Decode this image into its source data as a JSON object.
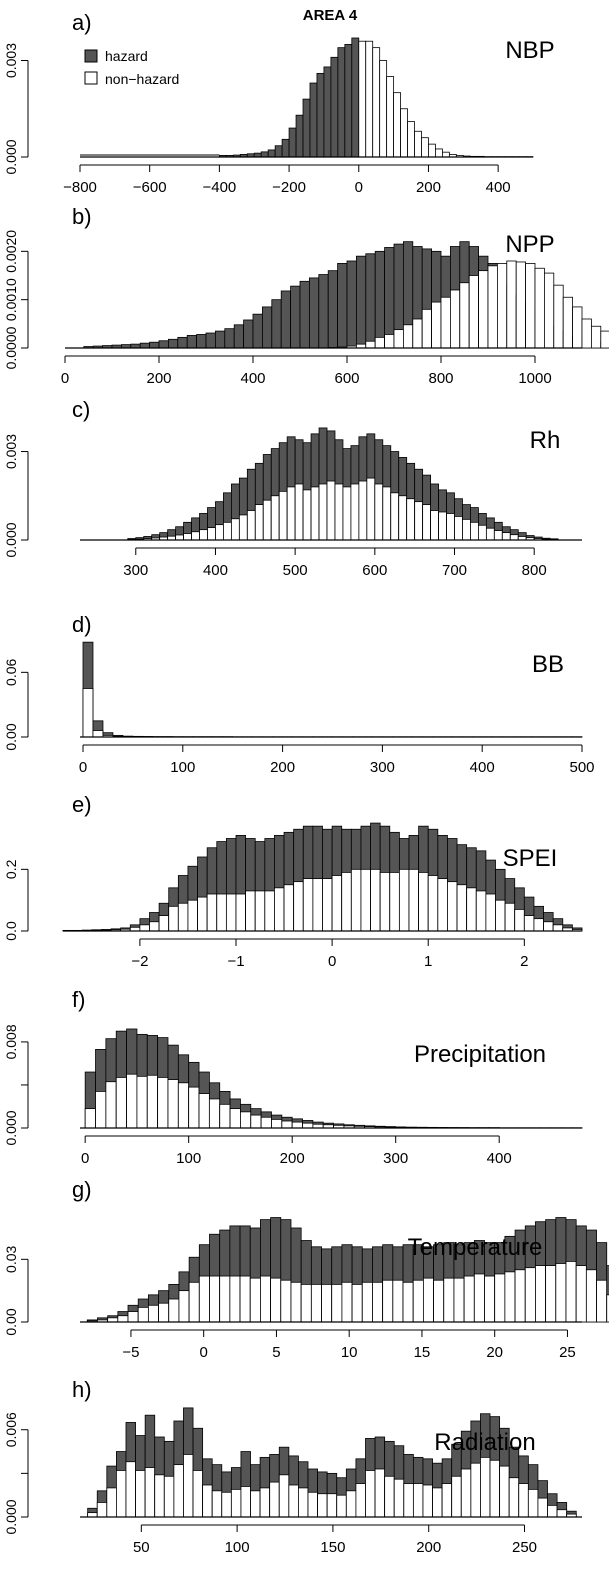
{
  "figure": {
    "title": "AREA  4",
    "legend": [
      {
        "label": "hazard",
        "color": "#555555"
      },
      {
        "label": "non−hazard",
        "color": "#ffffff"
      }
    ]
  },
  "colors": {
    "hazard": "#555555",
    "nonhazard": "#ffffff",
    "outline": "#000000"
  },
  "chart_data": [
    {
      "type": "bar",
      "panel": "a)",
      "title": "NBP",
      "xlim": [
        -800,
        500
      ],
      "ylim": [
        0,
        0.0037
      ],
      "xticks": [
        -800,
        -600,
        -400,
        -200,
        0,
        200,
        400
      ],
      "yticks": [
        0,
        0.003
      ],
      "ytick_labels": [
        "0.000",
        "0.003"
      ],
      "xtick_labels": [
        "−800",
        "−600",
        "−400",
        "−200",
        "0",
        "200",
        "400"
      ],
      "bin_start": -400,
      "bin_width": 20,
      "split": 0,
      "values": [
        5e-05,
        5e-05,
        6e-05,
        8e-05,
        0.0001,
        0.00012,
        0.00016,
        0.00022,
        0.00035,
        0.00055,
        0.0009,
        0.0013,
        0.0018,
        0.0023,
        0.0026,
        0.0028,
        0.0031,
        0.0034,
        0.0035,
        0.0037,
        0.0036,
        0.0036,
        0.0034,
        0.003,
        0.0025,
        0.002,
        0.0015,
        0.0011,
        0.0008,
        0.0006,
        0.0004,
        0.00025,
        0.00015,
        8e-05,
        5e-05,
        3e-05,
        2e-05,
        2e-05,
        1e-05,
        1e-05,
        1e-05,
        1e-05,
        1e-05,
        1e-05,
        1e-05
      ],
      "baseline_from": -800
    },
    {
      "type": "bar",
      "panel": "b)",
      "title": "NPP",
      "xlim": [
        0,
        1100
      ],
      "ylim": [
        0,
        0.0024
      ],
      "xticks": [
        0,
        200,
        400,
        600,
        800,
        1000
      ],
      "yticks": [
        0,
        0.001,
        0.002
      ],
      "ytick_labels": [
        "0.0000",
        "0.0010",
        "0.0020"
      ],
      "xtick_labels": [
        "0",
        "200",
        "400",
        "600",
        "800",
        "1000"
      ],
      "bin_start": 40,
      "bin_width": 20,
      "total": [
        3e-05,
        4e-05,
        5e-05,
        6e-05,
        7e-05,
        8e-05,
        0.0001,
        0.00012,
        0.00015,
        0.00018,
        0.00022,
        0.00026,
        0.00028,
        0.00031,
        0.00035,
        0.0004,
        0.00048,
        0.00058,
        0.0007,
        0.00085,
        0.001,
        0.00118,
        0.00128,
        0.00138,
        0.00145,
        0.00152,
        0.0016,
        0.00175,
        0.0018,
        0.0019,
        0.00195,
        0.002,
        0.00208,
        0.00215,
        0.0022,
        0.0021,
        0.00205,
        0.002,
        0.0019,
        0.0021,
        0.0022,
        0.0021,
        0.0019,
        0.00175,
        0.0015,
        0.0013,
        0.0011,
        0.00095,
        0.0008,
        0.0006,
        0.00045,
        0.00035,
        0.00025,
        0.0002,
        0.00015,
        0.00012,
        0.0001,
        8e-05,
        6e-05,
        5e-05,
        4e-05,
        4e-05,
        3e-05
      ],
      "nonhazard": [
        0,
        0,
        0,
        0,
        0,
        0,
        0,
        0,
        0,
        0,
        0,
        0,
        0,
        0,
        0,
        0,
        0,
        0,
        0,
        0,
        0,
        0,
        0,
        0,
        0,
        0,
        1e-05,
        2e-05,
        4e-05,
        8e-05,
        0.00014,
        0.00022,
        0.00028,
        0.00038,
        0.00048,
        0.0006,
        0.0008,
        0.00095,
        0.00105,
        0.0012,
        0.00135,
        0.0015,
        0.0016,
        0.0017,
        0.00175,
        0.0018,
        0.00178,
        0.00175,
        0.00165,
        0.00155,
        0.0013,
        0.00105,
        0.00085,
        0.0006,
        0.00045,
        0.00035,
        0.00025,
        0.0002,
        0.00015,
        0.00011,
        9e-05,
        8e-05,
        7e-05
      ]
    },
    {
      "type": "bar",
      "panel": "c)",
      "title": "Rh",
      "xlim": [
        230,
        860
      ],
      "ylim": [
        0,
        0.0039
      ],
      "xticks": [
        300,
        400,
        500,
        600,
        700,
        800
      ],
      "yticks": [
        0,
        0.003
      ],
      "ytick_labels": [
        "0.000",
        "0.003"
      ],
      "xtick_labels": [
        "300",
        "400",
        "500",
        "600",
        "700",
        "800"
      ],
      "bin_start": 290,
      "bin_width": 10,
      "total": [
        5e-05,
        8e-05,
        0.00012,
        0.00018,
        0.00025,
        0.00035,
        0.00045,
        0.0006,
        0.00075,
        0.0009,
        0.0011,
        0.0013,
        0.0016,
        0.0019,
        0.0021,
        0.0024,
        0.0026,
        0.0029,
        0.0031,
        0.0033,
        0.0035,
        0.0034,
        0.0033,
        0.0036,
        0.0038,
        0.0037,
        0.0034,
        0.0031,
        0.0032,
        0.0035,
        0.0036,
        0.0034,
        0.0032,
        0.003,
        0.0028,
        0.0026,
        0.0024,
        0.0022,
        0.0019,
        0.0017,
        0.0016,
        0.0014,
        0.0012,
        0.0011,
        0.0009,
        0.00075,
        0.0006,
        0.00045,
        0.00035,
        0.00025,
        0.00015,
        0.0001,
        6e-05,
        4e-05
      ],
      "nonhazard": [
        2e-05,
        3e-05,
        5e-05,
        7e-05,
        0.0001,
        0.00013,
        0.00017,
        0.00022,
        0.00028,
        0.00035,
        0.00042,
        0.00052,
        0.0006,
        0.00072,
        0.00085,
        0.001,
        0.0012,
        0.00135,
        0.0015,
        0.00165,
        0.0018,
        0.0019,
        0.0017,
        0.0018,
        0.0019,
        0.002,
        0.0019,
        0.0018,
        0.0019,
        0.002,
        0.0021,
        0.0019,
        0.0018,
        0.0016,
        0.0015,
        0.0014,
        0.0013,
        0.0012,
        0.001,
        0.00095,
        0.0009,
        0.0008,
        0.0007,
        0.0006,
        0.0005,
        0.0004,
        0.00032,
        0.00025,
        0.00018,
        0.00012,
        8e-05,
        5e-05,
        3e-05,
        2e-05
      ]
    },
    {
      "type": "bar",
      "panel": "d)",
      "title": "BB",
      "xlim": [
        -3,
        500
      ],
      "ylim": [
        0,
        0.09
      ],
      "xticks": [
        0,
        100,
        200,
        300,
        400,
        500
      ],
      "yticks": [
        0,
        0.06
      ],
      "ytick_labels": [
        "0.00",
        "0.06"
      ],
      "xtick_labels": [
        "0",
        "100",
        "200",
        "300",
        "400",
        "500"
      ],
      "bin_start": 0,
      "bin_width": 10,
      "total": [
        0.088,
        0.015,
        0.004,
        0.0015,
        0.0008,
        0.0006,
        0.0005,
        0.0004,
        0.0004,
        0.0003,
        0.0003,
        0.0003,
        0.0003,
        0.0003,
        0.0003,
        0.0002,
        0.0002,
        0.0002,
        0.0002,
        0.0002,
        0.0002,
        0.0002,
        0.0002,
        0.0002,
        0.0002,
        0.0002,
        0.0002,
        0.0002,
        0.0002,
        0.0002,
        0.0002,
        0.0002,
        0.0002,
        0.0002,
        0.0002,
        0.0002,
        0.0002,
        0.0002,
        0.0002,
        0.0002,
        0.0002,
        0.0002,
        0.0002,
        0.0002,
        0.0002,
        0.0002,
        0.0002,
        0.0002,
        0.0002,
        0.0002
      ],
      "nonhazard": [
        0.045,
        0.006,
        0.0015,
        0.0005,
        0.0003,
        0.0002,
        0.0002,
        0.0001,
        0.0001,
        0.0001,
        0.0001,
        0.0001,
        0.0001,
        0.0001,
        0.0001,
        0.0001,
        0.0001,
        0.0001,
        0.0001,
        0.0001,
        0.0001,
        0.0001,
        0.0001,
        0.0001,
        0.0001,
        0.0001,
        0.0001,
        0.0001,
        0.0001,
        0.0001,
        0.0001,
        0.0001,
        0.0001,
        0.0001,
        0.0001,
        0.0001,
        0.0001,
        0.0001,
        0.0001,
        0.0001,
        0.0001,
        0.0001,
        0.0001,
        0.0001,
        0.0001,
        0.0001,
        0.0001,
        0.0001,
        0.0001,
        0.0001
      ]
    },
    {
      "type": "bar",
      "panel": "e)",
      "title": "SPEI",
      "xlim": [
        -2.8,
        2.6
      ],
      "ylim": [
        0,
        0.36
      ],
      "xticks": [
        -2,
        -1,
        0,
        1,
        2
      ],
      "yticks": [
        0,
        0.2
      ],
      "ytick_labels": [
        "0.0",
        "0.2"
      ],
      "xtick_labels": [
        "−2",
        "−1",
        "0",
        "1",
        "2"
      ],
      "bin_start": -2.8,
      "bin_width": 0.1,
      "total": [
        0.002,
        0.002,
        0.003,
        0.004,
        0.005,
        0.007,
        0.01,
        0.02,
        0.04,
        0.06,
        0.09,
        0.14,
        0.18,
        0.21,
        0.24,
        0.27,
        0.29,
        0.3,
        0.31,
        0.3,
        0.29,
        0.3,
        0.31,
        0.32,
        0.33,
        0.34,
        0.34,
        0.33,
        0.34,
        0.33,
        0.33,
        0.34,
        0.35,
        0.34,
        0.32,
        0.3,
        0.31,
        0.34,
        0.33,
        0.31,
        0.3,
        0.28,
        0.27,
        0.26,
        0.23,
        0.2,
        0.17,
        0.14,
        0.11,
        0.08,
        0.06,
        0.04,
        0.02,
        0.01
      ],
      "nonhazard": [
        0.001,
        0.001,
        0.001,
        0.002,
        0.003,
        0.004,
        0.006,
        0.012,
        0.02,
        0.03,
        0.05,
        0.08,
        0.09,
        0.1,
        0.11,
        0.12,
        0.12,
        0.12,
        0.12,
        0.13,
        0.13,
        0.13,
        0.14,
        0.15,
        0.16,
        0.17,
        0.17,
        0.17,
        0.18,
        0.19,
        0.2,
        0.2,
        0.2,
        0.19,
        0.19,
        0.2,
        0.2,
        0.19,
        0.18,
        0.17,
        0.16,
        0.15,
        0.14,
        0.13,
        0.12,
        0.1,
        0.09,
        0.07,
        0.05,
        0.04,
        0.03,
        0.02,
        0.01,
        0.005
      ]
    },
    {
      "type": "bar",
      "panel": "f)",
      "title": "Precipitation",
      "xlim": [
        -5,
        480
      ],
      "ylim": [
        0,
        0.0105
      ],
      "xticks": [
        0,
        100,
        200,
        300,
        400
      ],
      "yticks": [
        0,
        0.004,
        0.008
      ],
      "ytick_labels": [
        "0.000",
        "",
        "0.008"
      ],
      "xtick_labels": [
        "0",
        "100",
        "200",
        "300",
        "400"
      ],
      "bin_start": 0,
      "bin_width": 10,
      "total": [
        0.0052,
        0.0073,
        0.0083,
        0.009,
        0.0092,
        0.0087,
        0.0086,
        0.0084,
        0.0077,
        0.0068,
        0.0061,
        0.0052,
        0.0042,
        0.0034,
        0.0027,
        0.0022,
        0.0018,
        0.0015,
        0.0012,
        0.001,
        0.00085,
        0.0007,
        0.00055,
        0.00045,
        0.00038,
        0.0003,
        0.00025,
        0.0002,
        0.00016,
        0.00013,
        0.0001,
        8e-05,
        7e-05,
        6e-05,
        5e-05,
        4e-05,
        4e-05,
        3e-05,
        3e-05,
        3e-05,
        2e-05,
        2e-05,
        2e-05,
        2e-05,
        2e-05,
        2e-05,
        2e-05,
        2e-05
      ],
      "nonhazard": [
        0.0018,
        0.0034,
        0.0043,
        0.0047,
        0.005,
        0.0048,
        0.0049,
        0.0047,
        0.0045,
        0.0042,
        0.0038,
        0.0032,
        0.0027,
        0.0022,
        0.0018,
        0.0015,
        0.0012,
        0.001,
        0.0008,
        0.00065,
        0.00055,
        0.00045,
        0.00035,
        0.0003,
        0.00025,
        0.0002,
        0.00016,
        0.00013,
        0.0001,
        8e-05,
        6e-05,
        5e-05,
        4e-05,
        4e-05,
        3e-05,
        3e-05,
        2e-05,
        2e-05,
        2e-05,
        2e-05,
        1e-05,
        1e-05,
        1e-05,
        1e-05,
        1e-05,
        1e-05,
        1e-05,
        1e-05
      ]
    },
    {
      "type": "bar",
      "panel": "g)",
      "title": "Temperature",
      "xlim": [
        -8.5,
        26
      ],
      "ylim": [
        0,
        0.056
      ],
      "xticks": [
        -5,
        0,
        5,
        10,
        15,
        20,
        25
      ],
      "yticks": [
        0,
        0.03
      ],
      "ytick_labels": [
        "0.00",
        "0.03"
      ],
      "xtick_labels": [
        "−5",
        "0",
        "5",
        "10",
        "15",
        "20",
        "25"
      ],
      "bin_start": -8,
      "bin_width": 0.7,
      "total": [
        0.001,
        0.002,
        0.003,
        0.005,
        0.008,
        0.011,
        0.013,
        0.015,
        0.018,
        0.024,
        0.031,
        0.037,
        0.042,
        0.044,
        0.046,
        0.046,
        0.045,
        0.049,
        0.05,
        0.049,
        0.045,
        0.039,
        0.036,
        0.035,
        0.036,
        0.037,
        0.036,
        0.035,
        0.036,
        0.037,
        0.036,
        0.037,
        0.037,
        0.036,
        0.037,
        0.038,
        0.037,
        0.038,
        0.039,
        0.038,
        0.038,
        0.041,
        0.044,
        0.046,
        0.048,
        0.049,
        0.05,
        0.049,
        0.046,
        0.044,
        0.038,
        0.027,
        0.018,
        0.009,
        0.005,
        0.002,
        0.001
      ],
      "nonhazard": [
        0.0005,
        0.001,
        0.002,
        0.003,
        0.005,
        0.007,
        0.008,
        0.009,
        0.011,
        0.015,
        0.019,
        0.022,
        0.022,
        0.022,
        0.022,
        0.022,
        0.021,
        0.022,
        0.021,
        0.02,
        0.019,
        0.018,
        0.018,
        0.018,
        0.018,
        0.019,
        0.018,
        0.019,
        0.019,
        0.02,
        0.02,
        0.019,
        0.02,
        0.021,
        0.02,
        0.021,
        0.021,
        0.022,
        0.023,
        0.022,
        0.023,
        0.024,
        0.025,
        0.026,
        0.027,
        0.027,
        0.028,
        0.029,
        0.027,
        0.025,
        0.02,
        0.013,
        0.008,
        0.004,
        0.002,
        0.001,
        0.0005
      ]
    },
    {
      "type": "bar",
      "panel": "h)",
      "title": "Radiation",
      "xlim": [
        18,
        280
      ],
      "ylim": [
        0,
        0.0077
      ],
      "xticks": [
        50,
        100,
        150,
        200,
        250
      ],
      "yticks": [
        0,
        0.003,
        0.006
      ],
      "ytick_labels": [
        "0.000",
        "",
        "0.006"
      ],
      "xtick_labels": [
        "50",
        "100",
        "150",
        "200",
        "250"
      ],
      "bin_start": 22,
      "bin_width": 5,
      "total": [
        0.0006,
        0.0018,
        0.0035,
        0.0045,
        0.0065,
        0.0056,
        0.007,
        0.0055,
        0.0052,
        0.0066,
        0.0075,
        0.0061,
        0.004,
        0.0036,
        0.0031,
        0.0034,
        0.0045,
        0.0036,
        0.0041,
        0.0043,
        0.0048,
        0.0042,
        0.0038,
        0.0033,
        0.0031,
        0.003,
        0.0027,
        0.0033,
        0.004,
        0.0054,
        0.0055,
        0.0052,
        0.0049,
        0.0043,
        0.0041,
        0.004,
        0.0037,
        0.004,
        0.005,
        0.0059,
        0.0066,
        0.0071,
        0.0069,
        0.0061,
        0.0048,
        0.0042,
        0.0036,
        0.0025,
        0.0016,
        0.001,
        0.0004
      ],
      "nonhazard": [
        0.0003,
        0.001,
        0.002,
        0.0032,
        0.0038,
        0.0032,
        0.0034,
        0.0029,
        0.0028,
        0.0036,
        0.0043,
        0.0032,
        0.0022,
        0.0018,
        0.0017,
        0.0019,
        0.0021,
        0.0018,
        0.002,
        0.0024,
        0.0029,
        0.0022,
        0.002,
        0.0017,
        0.0016,
        0.0016,
        0.0015,
        0.0018,
        0.0023,
        0.0032,
        0.0033,
        0.0028,
        0.0026,
        0.0023,
        0.0023,
        0.0022,
        0.002,
        0.0023,
        0.0028,
        0.0033,
        0.0037,
        0.0041,
        0.0039,
        0.0035,
        0.0027,
        0.0023,
        0.0019,
        0.0013,
        0.0008,
        0.0005,
        0.0002
      ]
    }
  ]
}
